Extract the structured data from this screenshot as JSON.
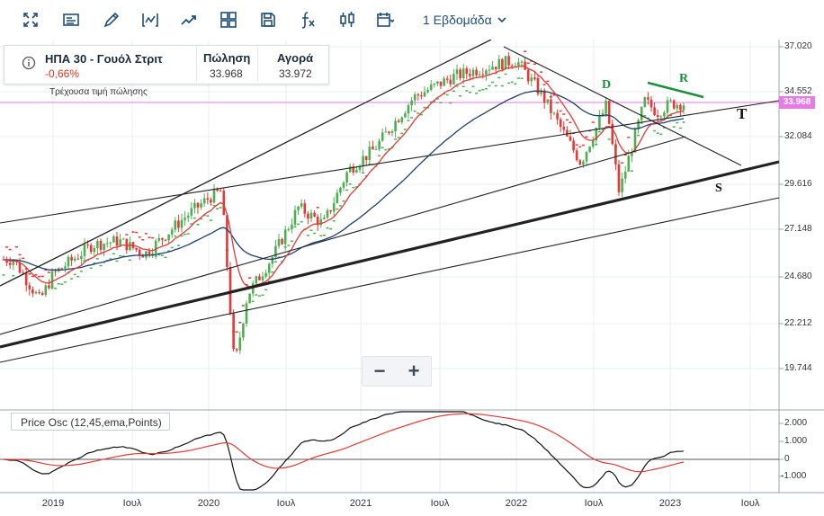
{
  "toolbar": {
    "buttons": [
      "fullscreen-icon",
      "news-icon",
      "draw-icon",
      "indicator-icon",
      "trend-icon",
      "layout-icon",
      "save-icon",
      "function-icon",
      "candles-icon",
      "calendar-icon"
    ],
    "period_label": "1 Εβδομάδα"
  },
  "quote": {
    "symbol": "ΗΠΑ 30 - Γουόλ Στριτ",
    "change": "-0,66%",
    "sell_label": "Πώληση",
    "sell_value": "33.968",
    "buy_label": "Αγορά",
    "buy_value": "33.972",
    "current_price_note": "Τρέχουσα τιμή πώλησης"
  },
  "price_axis": [
    "37.020",
    "34.552",
    "32.084",
    "29.616",
    "27.148",
    "24.680",
    "22.212",
    "19.744"
  ],
  "current_price_tag": "33.968",
  "osc_axis": [
    "2.000",
    "1.000",
    "0",
    "-1.000"
  ],
  "time_axis": [
    "2019",
    "Ιουλ",
    "2020",
    "Ιουλ",
    "2021",
    "Ιουλ",
    "2022",
    "Ιουλ",
    "2023",
    "Ιουλ"
  ],
  "oscillator_label": "Price Osc (12,45,ema,Points)",
  "annotations": {
    "d": "D",
    "r": "R",
    "t": "T",
    "s": "S"
  },
  "zoom": {
    "minus": "−",
    "plus": "+"
  },
  "colors": {
    "up": "#4caf50",
    "down": "#e53935",
    "ma_red": "#e53935",
    "ma_blue": "#1f3f6e",
    "psar": "#4caf50",
    "price_line": "#e879e8"
  },
  "chart_data": {
    "type": "candlestick",
    "title": "ΗΠΑ 30 - Γουόλ Στριτ",
    "timeframe": "1 Εβδομάδα",
    "x_ticks": [
      "2019",
      "Ιουλ",
      "2020",
      "Ιουλ",
      "2021",
      "Ιουλ",
      "2022",
      "Ιουλ",
      "2023",
      "Ιουλ"
    ],
    "y_ticks": [
      37020,
      34552,
      32084,
      29616,
      27148,
      24680,
      22212,
      19744
    ],
    "ylim": [
      18500,
      37500
    ],
    "last_price": 33968,
    "close_series_approx": [
      [
        "2018-10",
        25600
      ],
      [
        "2018-12",
        23400
      ],
      [
        "2019-01",
        24800
      ],
      [
        "2019-04",
        26400
      ],
      [
        "2019-06",
        26600
      ],
      [
        "2019-08",
        25900
      ],
      [
        "2019-11",
        27800
      ],
      [
        "2020-01",
        28900
      ],
      [
        "2020-02",
        29300
      ],
      [
        "2020-03",
        19800
      ],
      [
        "2020-04",
        23700
      ],
      [
        "2020-06",
        25800
      ],
      [
        "2020-08",
        28400
      ],
      [
        "2020-10",
        27500
      ],
      [
        "2020-12",
        30400
      ],
      [
        "2021-02",
        31500
      ],
      [
        "2021-05",
        34300
      ],
      [
        "2021-08",
        35400
      ],
      [
        "2021-11",
        36000
      ],
      [
        "2022-01",
        36300
      ],
      [
        "2022-03",
        34400
      ],
      [
        "2022-06",
        30800
      ],
      [
        "2022-08",
        33900
      ],
      [
        "2022-09",
        29200
      ],
      [
        "2022-11",
        34100
      ],
      [
        "2022-12",
        33500
      ],
      [
        "2023-01",
        33968
      ]
    ],
    "oscillator": {
      "name": "Price Osc (12,45,ema,Points)",
      "y_ticks": [
        2000,
        1000,
        0,
        -1000
      ]
    }
  }
}
